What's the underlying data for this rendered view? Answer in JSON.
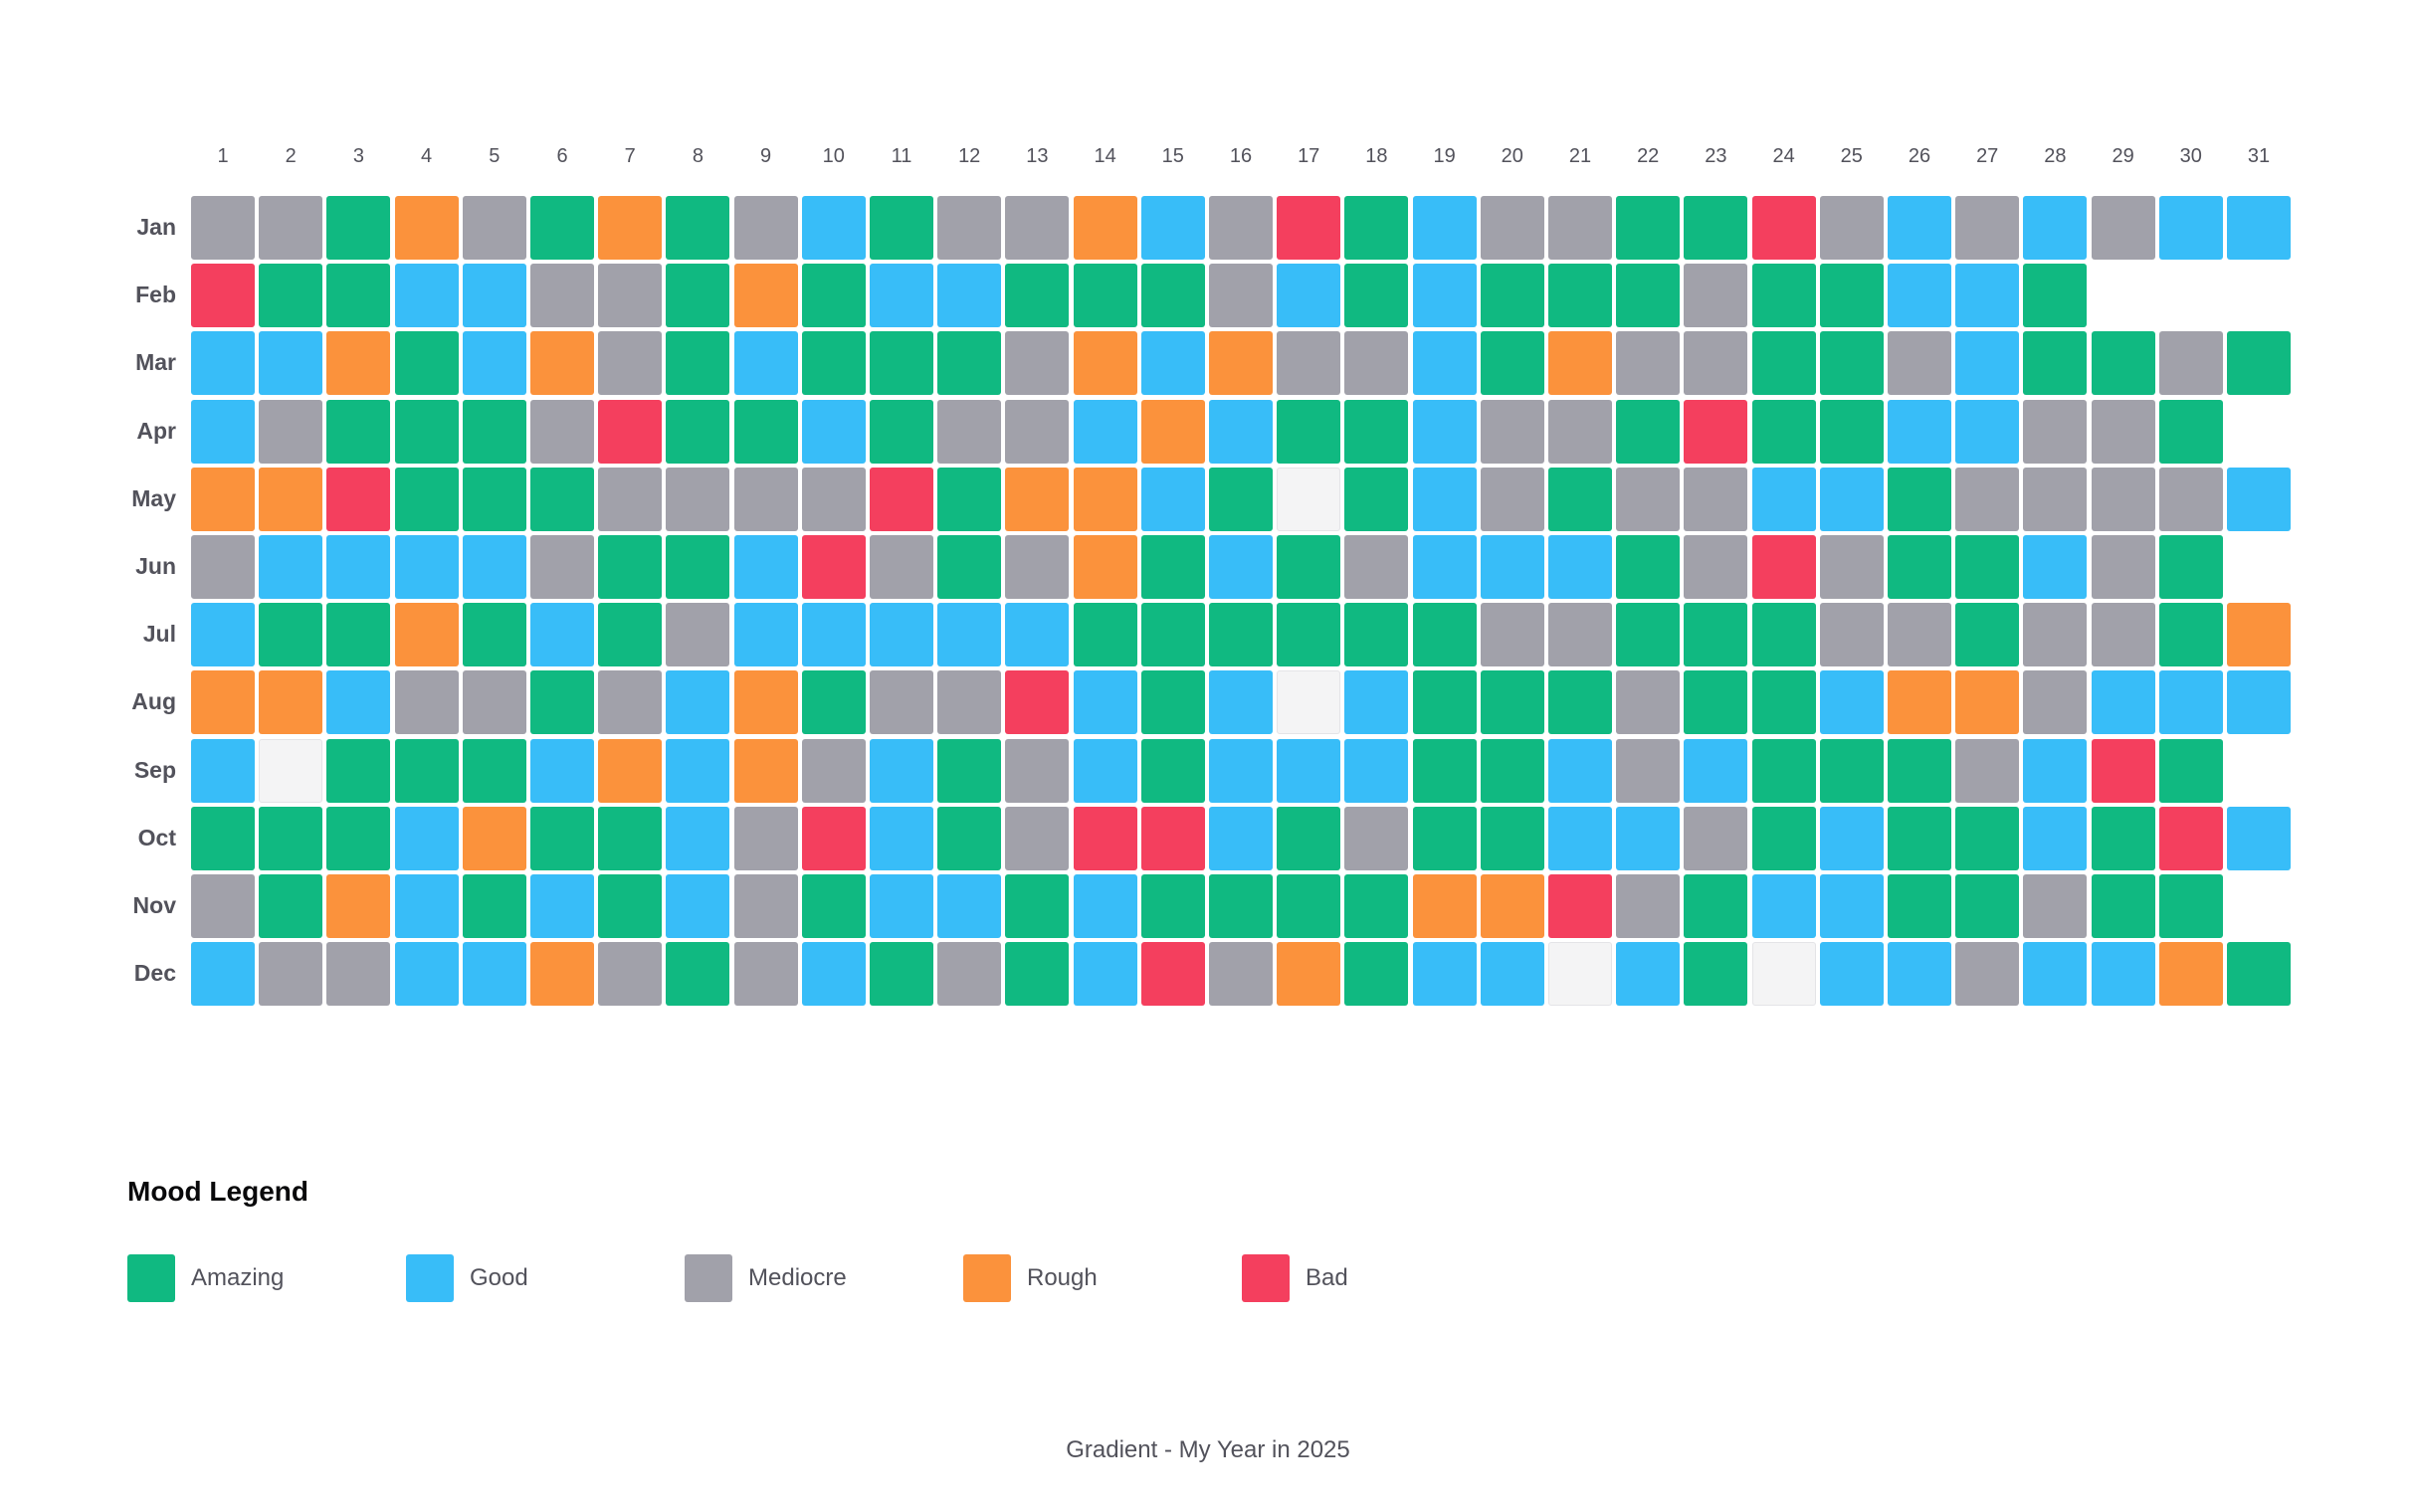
{
  "chart_data": {
    "type": "heatmap",
    "days": [
      "1",
      "2",
      "3",
      "4",
      "5",
      "6",
      "7",
      "8",
      "9",
      "10",
      "11",
      "12",
      "13",
      "14",
      "15",
      "16",
      "17",
      "18",
      "19",
      "20",
      "21",
      "22",
      "23",
      "24",
      "25",
      "26",
      "27",
      "28",
      "29",
      "30",
      "31"
    ],
    "months": [
      {
        "label": "Jan",
        "moods": [
          "M",
          "M",
          "A",
          "R",
          "M",
          "A",
          "R",
          "A",
          "M",
          "G",
          "A",
          "M",
          "M",
          "R",
          "G",
          "M",
          "B",
          "A",
          "G",
          "M",
          "M",
          "A",
          "A",
          "B",
          "M",
          "G",
          "M",
          "G",
          "M",
          "G",
          "G"
        ]
      },
      {
        "label": "Feb",
        "moods": [
          "B",
          "A",
          "A",
          "G",
          "G",
          "M",
          "M",
          "A",
          "R",
          "A",
          "G",
          "G",
          "A",
          "A",
          "A",
          "M",
          "G",
          "A",
          "G",
          "A",
          "A",
          "A",
          "M",
          "A",
          "A",
          "G",
          "G",
          "A"
        ]
      },
      {
        "label": "Mar",
        "moods": [
          "G",
          "G",
          "R",
          "A",
          "G",
          "R",
          "M",
          "A",
          "G",
          "A",
          "A",
          "A",
          "M",
          "R",
          "G",
          "R",
          "M",
          "M",
          "G",
          "A",
          "R",
          "M",
          "M",
          "A",
          "A",
          "M",
          "G",
          "A",
          "A",
          "M",
          "A"
        ]
      },
      {
        "label": "Apr",
        "moods": [
          "G",
          "M",
          "A",
          "A",
          "A",
          "M",
          "B",
          "A",
          "A",
          "G",
          "A",
          "M",
          "M",
          "G",
          "R",
          "G",
          "A",
          "A",
          "G",
          "M",
          "M",
          "A",
          "B",
          "A",
          "A",
          "G",
          "G",
          "M",
          "M",
          "A"
        ]
      },
      {
        "label": "May",
        "moods": [
          "R",
          "R",
          "B",
          "A",
          "A",
          "A",
          "M",
          "M",
          "M",
          "M",
          "B",
          "A",
          "R",
          "R",
          "G",
          "A",
          "E",
          "A",
          "G",
          "M",
          "A",
          "M",
          "M",
          "G",
          "G",
          "A",
          "M",
          "M",
          "M",
          "M",
          "G"
        ]
      },
      {
        "label": "Jun",
        "moods": [
          "M",
          "G",
          "G",
          "G",
          "G",
          "M",
          "A",
          "A",
          "G",
          "B",
          "M",
          "A",
          "M",
          "R",
          "A",
          "G",
          "A",
          "M",
          "G",
          "G",
          "G",
          "A",
          "M",
          "B",
          "M",
          "A",
          "A",
          "G",
          "M",
          "A"
        ]
      },
      {
        "label": "Jul",
        "moods": [
          "G",
          "A",
          "A",
          "R",
          "A",
          "G",
          "A",
          "M",
          "G",
          "G",
          "G",
          "G",
          "G",
          "A",
          "A",
          "A",
          "A",
          "A",
          "A",
          "M",
          "M",
          "A",
          "A",
          "A",
          "M",
          "M",
          "A",
          "M",
          "M",
          "A",
          "R"
        ]
      },
      {
        "label": "Aug",
        "moods": [
          "R",
          "R",
          "G",
          "M",
          "M",
          "A",
          "M",
          "G",
          "R",
          "A",
          "M",
          "M",
          "B",
          "G",
          "A",
          "G",
          "E",
          "G",
          "A",
          "A",
          "A",
          "M",
          "A",
          "A",
          "G",
          "R",
          "R",
          "M",
          "G",
          "G",
          "G"
        ]
      },
      {
        "label": "Sep",
        "moods": [
          "G",
          "E",
          "A",
          "A",
          "A",
          "G",
          "R",
          "G",
          "R",
          "M",
          "G",
          "A",
          "M",
          "G",
          "A",
          "G",
          "G",
          "G",
          "A",
          "A",
          "G",
          "M",
          "G",
          "A",
          "A",
          "A",
          "M",
          "G",
          "B",
          "A"
        ]
      },
      {
        "label": "Oct",
        "moods": [
          "A",
          "A",
          "A",
          "G",
          "R",
          "A",
          "A",
          "G",
          "M",
          "B",
          "G",
          "A",
          "M",
          "B",
          "B",
          "G",
          "A",
          "M",
          "A",
          "A",
          "G",
          "G",
          "M",
          "A",
          "G",
          "A",
          "A",
          "G",
          "A",
          "B",
          "G"
        ]
      },
      {
        "label": "Nov",
        "moods": [
          "M",
          "A",
          "R",
          "G",
          "A",
          "G",
          "A",
          "G",
          "M",
          "A",
          "G",
          "G",
          "A",
          "G",
          "A",
          "A",
          "A",
          "A",
          "R",
          "R",
          "B",
          "M",
          "A",
          "G",
          "G",
          "A",
          "A",
          "M",
          "A",
          "A"
        ]
      },
      {
        "label": "Dec",
        "moods": [
          "G",
          "M",
          "M",
          "G",
          "G",
          "R",
          "M",
          "A",
          "M",
          "G",
          "A",
          "M",
          "A",
          "G",
          "B",
          "M",
          "R",
          "A",
          "G",
          "G",
          "E",
          "G",
          "A",
          "E",
          "G",
          "G",
          "M",
          "G",
          "G",
          "R",
          "A"
        ]
      }
    ],
    "empty_color": "#f4f4f5"
  },
  "legend": {
    "title": "Mood Legend",
    "items": [
      {
        "key": "A",
        "label": "Amazing",
        "color": "#10b981"
      },
      {
        "key": "G",
        "label": "Good",
        "color": "#38bdf8"
      },
      {
        "key": "M",
        "label": "Mediocre",
        "color": "#a1a1aa"
      },
      {
        "key": "R",
        "label": "Rough",
        "color": "#fb923c"
      },
      {
        "key": "B",
        "label": "Bad",
        "color": "#f43f5e"
      }
    ]
  },
  "footer": "Gradient - My Year in 2025"
}
